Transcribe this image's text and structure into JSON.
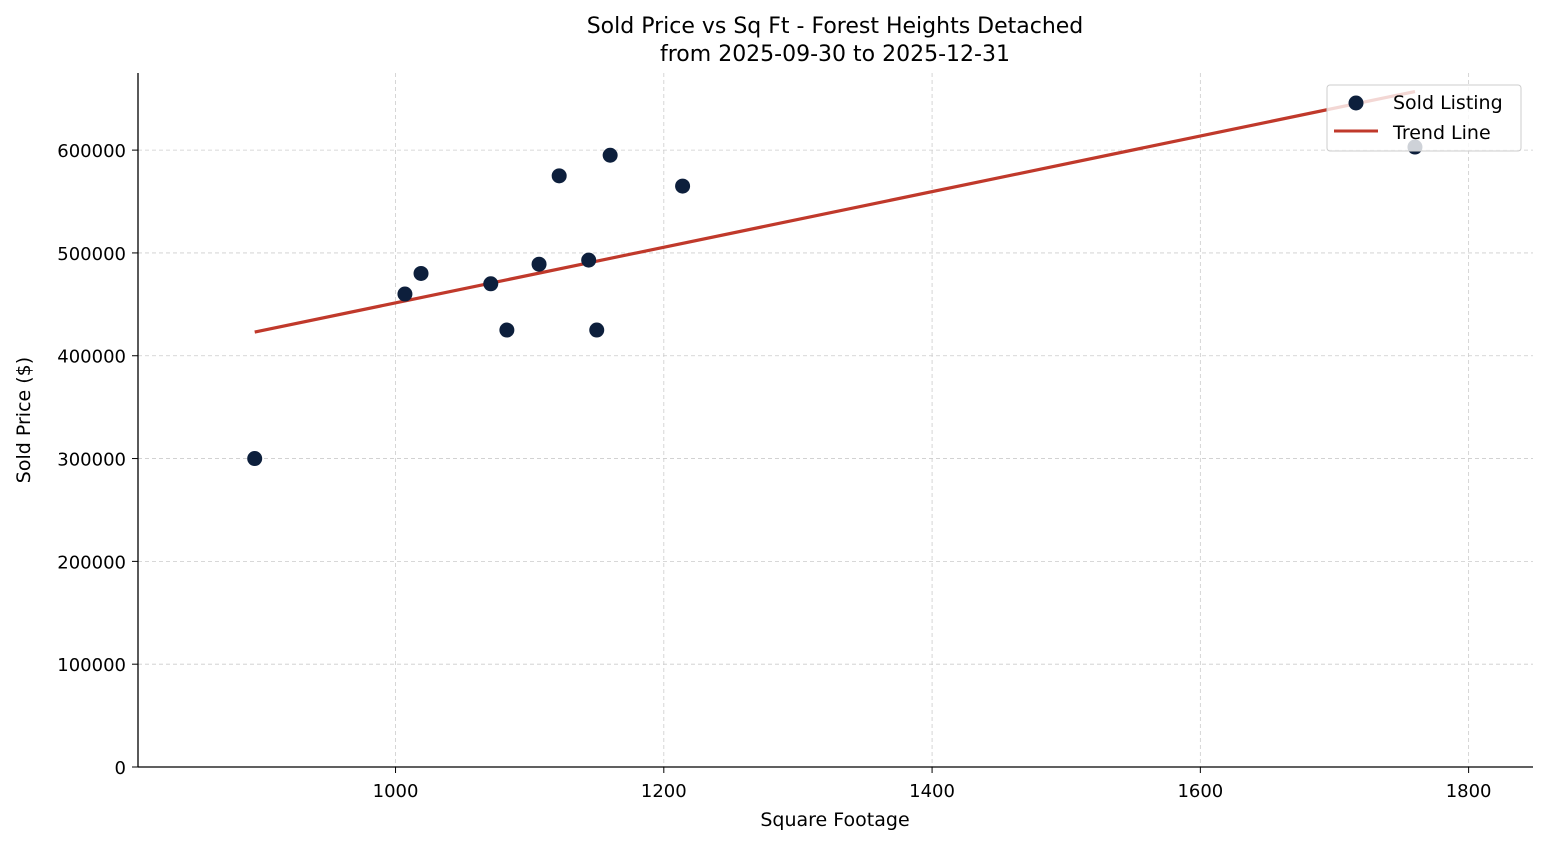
{
  "chart_data": {
    "type": "scatter",
    "title": "Sold Price vs Sq Ft - Forest Heights Detached",
    "subtitle": "from 2025-09-30 to 2025-12-31",
    "xlabel": "Square Footage",
    "ylabel": "Sold Price ($)",
    "xlim": [
      808,
      1848
    ],
    "ylim": [
      0,
      675000
    ],
    "xticks": [
      1000,
      1200,
      1400,
      1600,
      1800
    ],
    "yticks": [
      0,
      100000,
      200000,
      300000,
      400000,
      500000,
      600000
    ],
    "grid": true,
    "legend_position": "top-right",
    "series": [
      {
        "name": "Sold Listing",
        "kind": "scatter",
        "color": "#0d1f3c",
        "points": [
          [
            895,
            300000
          ],
          [
            1007,
            460000
          ],
          [
            1019,
            480000
          ],
          [
            1071,
            470000
          ],
          [
            1083,
            425000
          ],
          [
            1107,
            489000
          ],
          [
            1122,
            575000
          ],
          [
            1144,
            493000
          ],
          [
            1150,
            425000
          ],
          [
            1160,
            595000
          ],
          [
            1214,
            565000
          ],
          [
            1760,
            603000
          ]
        ]
      },
      {
        "name": "Trend Line",
        "kind": "line",
        "color": "#c0392b",
        "points": [
          [
            895,
            423000
          ],
          [
            1760,
            657000
          ]
        ]
      }
    ]
  }
}
